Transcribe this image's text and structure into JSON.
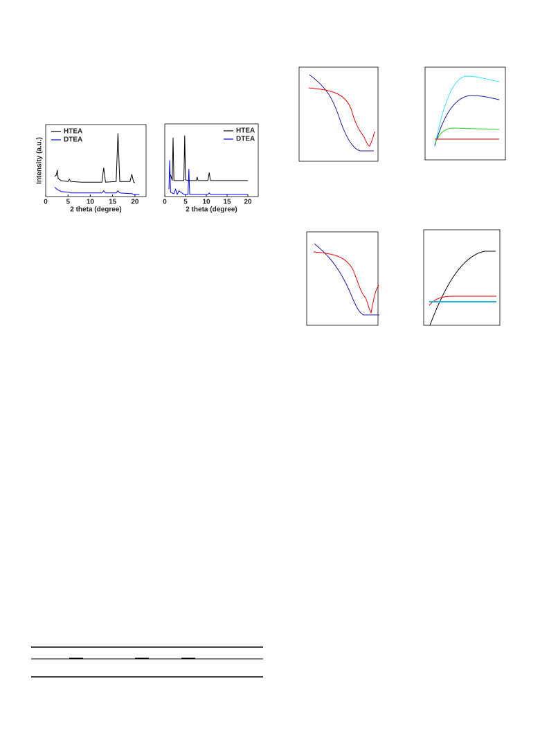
{
  "chart_data": [
    {
      "type": "line",
      "xlabel": "2 theta (degree)",
      "ylabel": "Intensity (a.u.)",
      "xlim": [
        0,
        22.5
      ],
      "xticks": [
        0,
        5,
        10,
        15,
        20
      ],
      "ylim": [
        0,
        100
      ],
      "legend": "upper-left",
      "x": [
        2,
        2.4,
        2.6,
        2.8,
        3.5,
        5,
        5.3,
        5.6,
        8,
        12.6,
        13,
        13.4,
        15.8,
        16.2,
        16.6,
        18.9,
        19.3,
        19.7,
        20,
        21
      ],
      "series": [
        {
          "name": "HTEA",
          "color": "#000000",
          "values": [
            28,
            30,
            37,
            25,
            22,
            21,
            24,
            21,
            20,
            20,
            40,
            20,
            21,
            88,
            21,
            21,
            31,
            20,
            19,
            null
          ]
        },
        {
          "name": "DTEA",
          "color": "#0000ee",
          "values": [
            13,
            11,
            10,
            9,
            7,
            6,
            6,
            5,
            5,
            5,
            8,
            5,
            5,
            8,
            5,
            4,
            4,
            3,
            3,
            3
          ]
        }
      ]
    },
    {
      "type": "line",
      "xlabel": "2 theta (degree)",
      "xlim": [
        0,
        22.5
      ],
      "xticks": [
        0,
        5,
        10,
        15,
        20
      ],
      "ylim": [
        0,
        100
      ],
      "legend": "upper-right",
      "x": [
        1,
        1.2,
        1.4,
        1.8,
        2,
        2.2,
        2.6,
        3,
        3.4,
        4.6,
        4.8,
        5,
        5.6,
        5.8,
        6,
        7.6,
        7.8,
        8,
        10.4,
        10.7,
        11,
        15,
        20
      ],
      "series": [
        {
          "name": "HTEA",
          "color": "#000000",
          "values": [
            null,
            null,
            30,
            22,
            81,
            22,
            22,
            22,
            22,
            22,
            84,
            23,
            22,
            22,
            22,
            22,
            27,
            22,
            22,
            33,
            22,
            22,
            22
          ]
        },
        {
          "name": "DTEA",
          "color": "#0000ee",
          "values": [
            10,
            50,
            6,
            5,
            4,
            4,
            10,
            3,
            8,
            3,
            3,
            3,
            3,
            38,
            3,
            3,
            3,
            3,
            3,
            5,
            3,
            3,
            3
          ]
        }
      ]
    }
  ]
}
